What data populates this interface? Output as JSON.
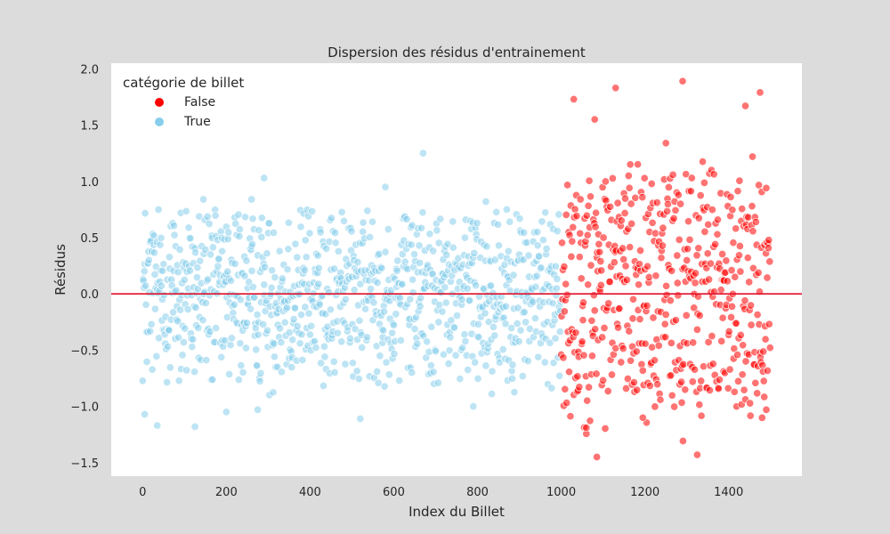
{
  "chart_data": {
    "type": "scatter",
    "title": "Dispersion des résidus d'entrainement",
    "xlabel": "Index du Billet",
    "ylabel": "Résidus",
    "xlim": [
      -75,
      1575
    ],
    "ylim": [
      -1.62,
      2.05
    ],
    "xticks": [
      0,
      200,
      400,
      600,
      800,
      1000,
      1200,
      1400
    ],
    "yticks": [
      -1.5,
      -1.0,
      -0.5,
      0.0,
      0.5,
      1.0,
      1.5,
      2.0
    ],
    "xtick_labels": [
      "0",
      "200",
      "400",
      "600",
      "800",
      "1000",
      "1200",
      "1400"
    ],
    "ytick_labels": [
      "−1.5",
      "−1.0",
      "−0.5",
      "0.0",
      "0.5",
      "1.0",
      "1.5",
      "2.0"
    ],
    "grid": false,
    "reference_line": {
      "y": 0,
      "color": "#e0102c"
    },
    "legend": {
      "title": "catégorie de billet",
      "placement": "top-left",
      "entries": [
        {
          "label": "False",
          "color": "#ff0000"
        },
        {
          "label": "True",
          "color": "#87ceeb"
        }
      ]
    },
    "series": [
      {
        "name": "True",
        "color": "#87ceeb",
        "x_range": [
          0,
          1000
        ],
        "notable_points": [
          {
            "x": 5,
            "y": -1.07
          },
          {
            "x": 35,
            "y": -1.17
          },
          {
            "x": 125,
            "y": -1.18
          },
          {
            "x": 145,
            "y": 0.84
          },
          {
            "x": 260,
            "y": 0.84
          },
          {
            "x": 290,
            "y": 1.03
          },
          {
            "x": 670,
            "y": 1.25
          },
          {
            "x": 580,
            "y": 0.95
          },
          {
            "x": 520,
            "y": -1.11
          },
          {
            "x": 200,
            "y": -1.05
          },
          {
            "x": 275,
            "y": -1.03
          },
          {
            "x": 790,
            "y": -1.0
          },
          {
            "x": 820,
            "y": 0.82
          },
          {
            "x": 870,
            "y": 0.75
          }
        ]
      },
      {
        "name": "False",
        "color": "#ff0000",
        "x_range": [
          1000,
          1500
        ],
        "notable_points": [
          {
            "x": 1030,
            "y": 1.73
          },
          {
            "x": 1130,
            "y": 1.83
          },
          {
            "x": 1290,
            "y": 1.89
          },
          {
            "x": 1475,
            "y": 1.79
          },
          {
            "x": 1440,
            "y": 1.67
          },
          {
            "x": 1080,
            "y": 1.55
          },
          {
            "x": 1085,
            "y": -1.45
          },
          {
            "x": 1325,
            "y": -1.43
          },
          {
            "x": 1060,
            "y": -1.19
          },
          {
            "x": 1195,
            "y": -1.1
          },
          {
            "x": 1490,
            "y": -1.03
          },
          {
            "x": 1250,
            "y": 1.34
          }
        ]
      }
    ]
  }
}
